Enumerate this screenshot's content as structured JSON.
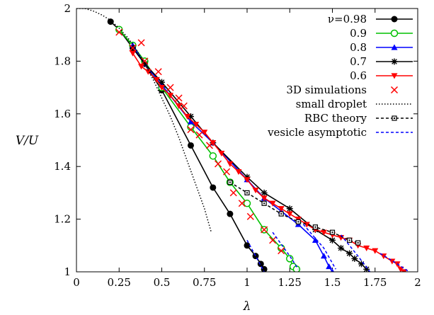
{
  "chart_data": {
    "type": "line",
    "xlabel": "λ",
    "ylabel": "V/U",
    "xlim": [
      0,
      2
    ],
    "ylim": [
      1,
      2
    ],
    "xticks": [
      "0",
      "0.25",
      "0.5",
      "0.75",
      "1",
      "1.25",
      "1.5",
      "1.75",
      "2"
    ],
    "yticks": [
      "1",
      "1.2",
      "1.4",
      "1.6",
      "1.8",
      "2"
    ],
    "legend_position": "top-right",
    "series": [
      {
        "name": "ν=0.98",
        "style": "line-marker",
        "marker": "filled-circle",
        "color": "#000000",
        "points": [
          [
            0.2,
            1.95
          ],
          [
            0.25,
            1.92
          ],
          [
            0.33,
            1.85
          ],
          [
            0.4,
            1.79
          ],
          [
            0.5,
            1.69
          ],
          [
            0.67,
            1.48
          ],
          [
            0.8,
            1.32
          ],
          [
            0.9,
            1.22
          ],
          [
            1.0,
            1.1
          ],
          [
            1.05,
            1.06
          ],
          [
            1.08,
            1.03
          ],
          [
            1.1,
            1.01
          ]
        ]
      },
      {
        "name": "0.9",
        "style": "line-marker",
        "marker": "open-circle",
        "color": "#00c000",
        "points": [
          [
            0.25,
            1.92
          ],
          [
            0.33,
            1.86
          ],
          [
            0.4,
            1.8
          ],
          [
            0.5,
            1.7
          ],
          [
            0.67,
            1.55
          ],
          [
            0.8,
            1.44
          ],
          [
            0.9,
            1.34
          ],
          [
            1.0,
            1.26
          ],
          [
            1.1,
            1.16
          ],
          [
            1.2,
            1.09
          ],
          [
            1.25,
            1.05
          ],
          [
            1.27,
            1.02
          ],
          [
            1.29,
            1.01
          ]
        ]
      },
      {
        "name": "0.8",
        "style": "line-marker",
        "marker": "filled-triangle-up",
        "color": "#0000ff",
        "points": [
          [
            0.33,
            1.86
          ],
          [
            0.4,
            1.79
          ],
          [
            0.5,
            1.71
          ],
          [
            0.67,
            1.57
          ],
          [
            0.8,
            1.49
          ],
          [
            1.0,
            1.35
          ],
          [
            1.1,
            1.28
          ],
          [
            1.2,
            1.23
          ],
          [
            1.3,
            1.18
          ],
          [
            1.4,
            1.12
          ],
          [
            1.45,
            1.06
          ],
          [
            1.48,
            1.02
          ],
          [
            1.5,
            1.0
          ]
        ]
      },
      {
        "name": "0.7",
        "style": "line-marker",
        "marker": "star",
        "color": "#000000",
        "points": [
          [
            0.33,
            1.85
          ],
          [
            0.4,
            1.79
          ],
          [
            0.5,
            1.72
          ],
          [
            0.67,
            1.59
          ],
          [
            0.8,
            1.49
          ],
          [
            1.0,
            1.36
          ],
          [
            1.1,
            1.3
          ],
          [
            1.25,
            1.24
          ],
          [
            1.4,
            1.16
          ],
          [
            1.5,
            1.12
          ],
          [
            1.55,
            1.09
          ],
          [
            1.6,
            1.07
          ],
          [
            1.63,
            1.05
          ],
          [
            1.67,
            1.03
          ],
          [
            1.7,
            1.01
          ]
        ]
      },
      {
        "name": "0.6",
        "style": "line-marker",
        "marker": "filled-triangle-down",
        "color": "#ff0000",
        "points": [
          [
            0.33,
            1.83
          ],
          [
            0.38,
            1.78
          ],
          [
            0.42,
            1.76
          ],
          [
            0.47,
            1.73
          ],
          [
            0.5,
            1.7
          ],
          [
            0.55,
            1.67
          ],
          [
            0.6,
            1.63
          ],
          [
            0.65,
            1.59
          ],
          [
            0.7,
            1.56
          ],
          [
            0.75,
            1.53
          ],
          [
            0.8,
            1.49
          ],
          [
            0.85,
            1.45
          ],
          [
            0.9,
            1.41
          ],
          [
            0.95,
            1.38
          ],
          [
            1.0,
            1.35
          ],
          [
            1.05,
            1.31
          ],
          [
            1.1,
            1.28
          ],
          [
            1.15,
            1.26
          ],
          [
            1.2,
            1.24
          ],
          [
            1.25,
            1.22
          ],
          [
            1.3,
            1.2
          ],
          [
            1.35,
            1.18
          ],
          [
            1.4,
            1.16
          ],
          [
            1.45,
            1.15
          ],
          [
            1.5,
            1.14
          ],
          [
            1.55,
            1.13
          ],
          [
            1.6,
            1.12
          ],
          [
            1.65,
            1.1
          ],
          [
            1.7,
            1.09
          ],
          [
            1.75,
            1.08
          ],
          [
            1.8,
            1.06
          ],
          [
            1.85,
            1.04
          ],
          [
            1.88,
            1.03
          ],
          [
            1.9,
            1.01
          ],
          [
            1.92,
            1.0
          ]
        ]
      },
      {
        "name": "3D simulations",
        "style": "marker",
        "marker": "cross",
        "color": "#ff0000",
        "points": [
          [
            0.25,
            1.91
          ],
          [
            0.33,
            1.85
          ],
          [
            0.38,
            1.87
          ],
          [
            0.4,
            1.8
          ],
          [
            0.48,
            1.76
          ],
          [
            0.55,
            1.7
          ],
          [
            0.6,
            1.66
          ],
          [
            0.63,
            1.63
          ],
          [
            0.67,
            1.54
          ],
          [
            0.72,
            1.52
          ],
          [
            0.78,
            1.48
          ],
          [
            0.83,
            1.41
          ],
          [
            0.88,
            1.38
          ],
          [
            0.92,
            1.3
          ],
          [
            0.97,
            1.26
          ],
          [
            1.02,
            1.21
          ],
          [
            1.1,
            1.16
          ],
          [
            1.15,
            1.12
          ],
          [
            1.2,
            1.08
          ]
        ]
      },
      {
        "name": "small droplet",
        "style": "dotted",
        "marker": "none",
        "color": "#000000",
        "points": [
          [
            0.0,
            2.0
          ],
          [
            0.05,
            2.0
          ],
          [
            0.1,
            1.99
          ],
          [
            0.15,
            1.975
          ],
          [
            0.2,
            1.955
          ],
          [
            0.25,
            1.925
          ],
          [
            0.3,
            1.89
          ],
          [
            0.35,
            1.845
          ],
          [
            0.4,
            1.79
          ],
          [
            0.45,
            1.73
          ],
          [
            0.5,
            1.66
          ],
          [
            0.55,
            1.59
          ],
          [
            0.6,
            1.51
          ],
          [
            0.65,
            1.42
          ],
          [
            0.7,
            1.33
          ],
          [
            0.75,
            1.24
          ],
          [
            0.79,
            1.15
          ]
        ]
      },
      {
        "name": "RBC theory",
        "style": "dashed-marker",
        "marker": "open-square",
        "color": "#000000",
        "points": [
          [
            0.9,
            1.34
          ],
          [
            1.0,
            1.3
          ],
          [
            1.1,
            1.26
          ],
          [
            1.2,
            1.22
          ],
          [
            1.3,
            1.19
          ],
          [
            1.4,
            1.17
          ],
          [
            1.5,
            1.15
          ],
          [
            1.6,
            1.12
          ],
          [
            1.65,
            1.11
          ]
        ]
      },
      {
        "name": "vesicle asymptotic",
        "style": "dashed",
        "marker": "none",
        "color": "#0000ff",
        "segments": [
          [
            [
              1.0,
              1.12
            ],
            [
              1.05,
              1.06
            ],
            [
              1.1,
              1.0
            ]
          ],
          [
            [
              1.15,
              1.15
            ],
            [
              1.25,
              1.06
            ],
            [
              1.3,
              1.01
            ]
          ],
          [
            [
              1.33,
              1.18
            ],
            [
              1.45,
              1.09
            ],
            [
              1.52,
              1.01
            ]
          ],
          [
            [
              1.55,
              1.14
            ],
            [
              1.65,
              1.06
            ],
            [
              1.72,
              1.0
            ]
          ],
          [
            [
              1.78,
              1.07
            ],
            [
              1.88,
              1.03
            ],
            [
              1.95,
              1.0
            ]
          ]
        ]
      }
    ]
  }
}
